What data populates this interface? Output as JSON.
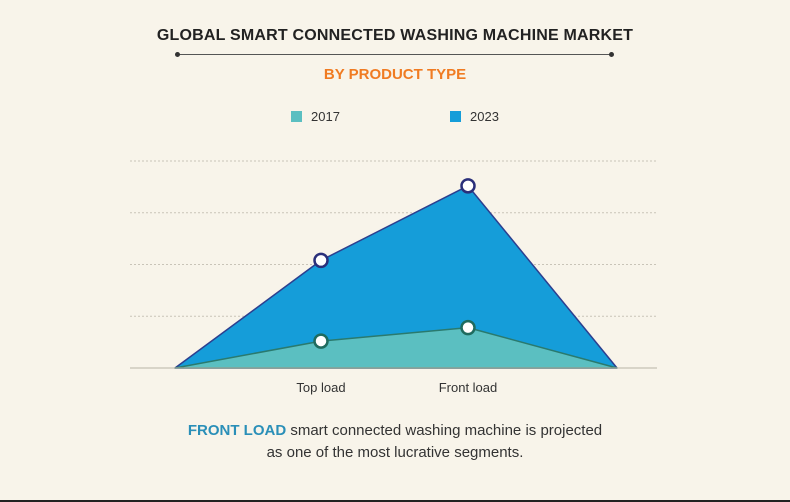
{
  "chart_data": {
    "type": "area",
    "title": "GLOBAL SMART CONNECTED WASHING MACHINE MARKET",
    "subtitle": "BY PRODUCT TYPE",
    "categories": [
      "Top load",
      "Front load"
    ],
    "series": [
      {
        "name": "2017",
        "color": "#5bbfc1",
        "values": [
          26,
          39
        ]
      },
      {
        "name": "2023",
        "color": "#159dd9",
        "values": [
          104,
          176
        ]
      }
    ],
    "ylim": [
      0,
      200
    ],
    "grid": true,
    "legend": "top-center"
  },
  "footer": {
    "highlight": "FRONT LOAD",
    "line1_rest": " smart connected washing machine is projected",
    "line2": "as one of the most lucrative segments."
  }
}
